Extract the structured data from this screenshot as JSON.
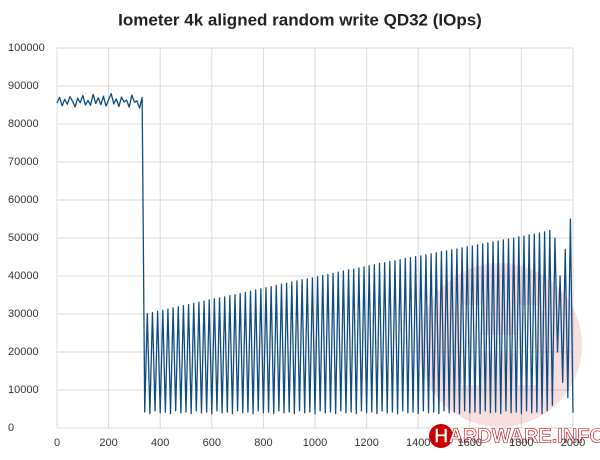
{
  "chart_data": {
    "type": "line",
    "title": "Iometer 4k aligned random write QD32 (IOps)",
    "watermark": "HARDWARE.INFO",
    "grid": true,
    "xlim": [
      0,
      2000
    ],
    "xticks": [
      0,
      200,
      400,
      600,
      800,
      1000,
      1200,
      1400,
      1600,
      1800,
      2000
    ],
    "ylim": [
      0,
      100000
    ],
    "yticks": [
      0,
      10000,
      20000,
      30000,
      40000,
      50000,
      60000,
      70000,
      80000,
      90000,
      100000
    ],
    "x": [
      0,
      10,
      20,
      30,
      40,
      50,
      60,
      70,
      80,
      90,
      100,
      110,
      120,
      130,
      140,
      150,
      160,
      170,
      180,
      190,
      200,
      210,
      220,
      230,
      240,
      250,
      260,
      270,
      280,
      290,
      300,
      310,
      320,
      330,
      340,
      350,
      360,
      370,
      380,
      390,
      400,
      410,
      420,
      430,
      440,
      450,
      460,
      470,
      480,
      490,
      500,
      510,
      520,
      530,
      540,
      550,
      560,
      570,
      580,
      590,
      600,
      610,
      620,
      630,
      640,
      650,
      660,
      670,
      680,
      690,
      700,
      710,
      720,
      730,
      740,
      750,
      760,
      770,
      780,
      790,
      800,
      810,
      820,
      830,
      840,
      850,
      860,
      870,
      880,
      890,
      900,
      910,
      920,
      930,
      940,
      950,
      960,
      970,
      980,
      990,
      1000,
      1010,
      1020,
      1030,
      1040,
      1050,
      1060,
      1070,
      1080,
      1090,
      1100,
      1110,
      1120,
      1130,
      1140,
      1150,
      1160,
      1170,
      1180,
      1190,
      1200,
      1210,
      1220,
      1230,
      1240,
      1250,
      1260,
      1270,
      1280,
      1290,
      1300,
      1310,
      1320,
      1330,
      1340,
      1350,
      1360,
      1370,
      1380,
      1390,
      1400,
      1410,
      1420,
      1430,
      1440,
      1450,
      1460,
      1470,
      1480,
      1490,
      1500,
      1510,
      1520,
      1530,
      1540,
      1550,
      1560,
      1570,
      1580,
      1590,
      1600,
      1610,
      1620,
      1630,
      1640,
      1650,
      1660,
      1670,
      1680,
      1690,
      1700,
      1710,
      1720,
      1730,
      1740,
      1750,
      1760,
      1770,
      1780,
      1790,
      1800,
      1810,
      1820,
      1830,
      1840,
      1850,
      1860,
      1870,
      1880,
      1890,
      1900,
      1910,
      1920,
      1930,
      1940,
      1950,
      1960,
      1970,
      1980,
      1990,
      2000
    ],
    "series": [
      {
        "color": "#0f4c81",
        "values": [
          85500,
          87000,
          84800,
          86500,
          85200,
          87200,
          86000,
          84500,
          86800,
          85600,
          87500,
          85000,
          86200,
          84900,
          87800,
          85400,
          86900,
          85100,
          87300,
          84700,
          86400,
          88000,
          85300,
          86600,
          84600,
          87100,
          85800,
          86300,
          84400,
          87600,
          85700,
          86100,
          84200,
          87000,
          4200,
          30100,
          3800,
          30400,
          4500,
          30700,
          4000,
          31000,
          4200,
          31300,
          3800,
          31600,
          4500,
          31900,
          4000,
          32200,
          4200,
          32500,
          3800,
          32800,
          4500,
          33100,
          4000,
          33400,
          4200,
          33700,
          3800,
          34000,
          4500,
          34200,
          4000,
          34500,
          4200,
          34800,
          3800,
          35100,
          4500,
          35400,
          4000,
          35700,
          4200,
          36000,
          3800,
          36300,
          4500,
          36600,
          4000,
          36900,
          4200,
          37200,
          3800,
          37500,
          4500,
          37800,
          4000,
          38100,
          4200,
          38400,
          3800,
          38700,
          4500,
          39000,
          4000,
          39200,
          4200,
          39500,
          3800,
          39800,
          4500,
          40100,
          4000,
          40400,
          4200,
          40700,
          3800,
          41000,
          4500,
          41300,
          4000,
          41600,
          4200,
          41800,
          3800,
          42100,
          4500,
          42400,
          4000,
          42700,
          4200,
          43000,
          3800,
          43300,
          4500,
          43500,
          4000,
          43800,
          4200,
          44000,
          3800,
          44300,
          4500,
          44600,
          4000,
          44800,
          4200,
          45100,
          3800,
          45300,
          4500,
          45600,
          4000,
          45800,
          4200,
          46100,
          3800,
          46400,
          4500,
          46600,
          4000,
          46900,
          4200,
          47100,
          3800,
          47400,
          4500,
          47700,
          4000,
          47900,
          4200,
          48200,
          3800,
          48400,
          4500,
          48700,
          4000,
          49000,
          4200,
          49200,
          3800,
          49500,
          4500,
          49700,
          4000,
          50000,
          4200,
          50300,
          3800,
          50500,
          4500,
          50800,
          4000,
          51000,
          4200,
          51300,
          3800,
          51600,
          4500,
          52000,
          6000,
          50000,
          20000,
          40000,
          12000,
          47000,
          8000,
          55000,
          4000
        ]
      }
    ]
  }
}
